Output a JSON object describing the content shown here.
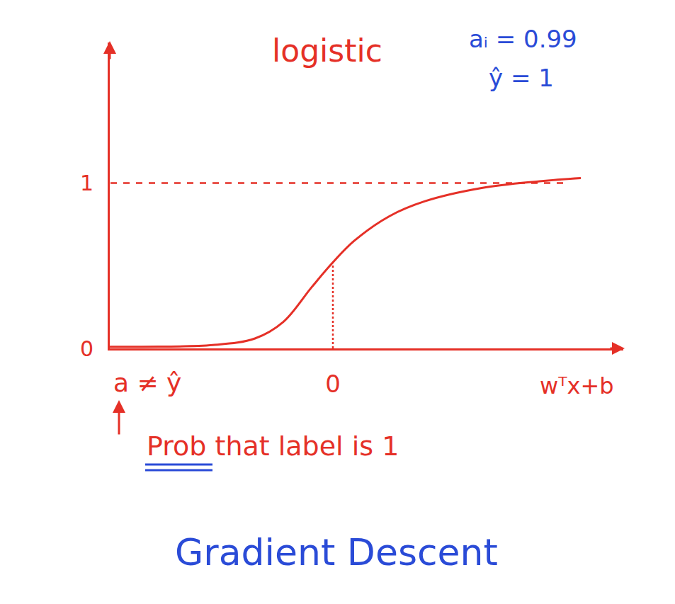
{
  "chart_data": {
    "type": "line",
    "title": "logistic",
    "xlabel": "wᵀx+b",
    "xlim": [
      -3.15,
      4.1
    ],
    "xticks": [
      0
    ],
    "ylim": [
      0,
      1.85
    ],
    "yticks": [
      0,
      1
    ],
    "grid": false,
    "series": [
      {
        "x": [
          -3.6,
          -2.7,
          -1.7,
          -1.1,
          -0.7,
          -0.3,
          0,
          0.3,
          0.8,
          1.3,
          2.1,
          2.9,
          3.5
        ],
        "values": [
          0.01,
          0.01,
          0.02,
          0.06,
          0.16,
          0.37,
          0.52,
          0.65,
          0.8,
          0.89,
          0.97,
          1.01,
          1.03
        ],
        "color": "#e53027",
        "line_style": "solid"
      },
      {
        "x": [
          -3.5,
          3.3
        ],
        "values": [
          1,
          1
        ],
        "color": "#e53027",
        "line_style": "dashed"
      },
      {
        "x": [
          0,
          0
        ],
        "values": [
          0,
          0.52
        ],
        "color": "#e53027",
        "line_style": "dotted"
      }
    ],
    "annotations": [
      {
        "text": "aᵢ = 0.99",
        "color": "#2a4bd7"
      },
      {
        "text": "ŷ = 1",
        "color": "#2a4bd7"
      },
      {
        "text": "a ≠ ŷ",
        "color": "#e53027"
      },
      {
        "text": "Prob that label is 1",
        "color": "#e53027"
      },
      {
        "text": "Gradient Descent",
        "color": "#2a4bd7"
      }
    ]
  }
}
